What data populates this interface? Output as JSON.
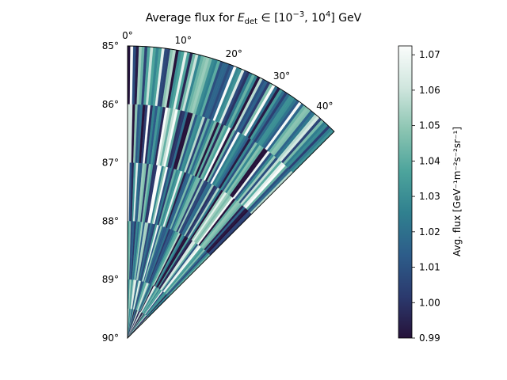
{
  "chart_data": {
    "type": "heatmap",
    "projection": "polar-sector",
    "title_prefix": "Average flux for ",
    "title_math": "E_det ∈ [10^-3, 10^4] GeV",
    "theta_ticks": [
      "0°",
      "10°",
      "20°",
      "30°",
      "40°"
    ],
    "theta_tick_values": [
      0,
      10,
      20,
      30,
      40
    ],
    "theta_range": [
      0,
      45
    ],
    "r_ticks": [
      "85°",
      "86°",
      "87°",
      "88°",
      "89°",
      "90°"
    ],
    "r_tick_values": [
      85,
      86,
      87,
      88,
      89,
      90
    ],
    "r_range": [
      85,
      90
    ],
    "ring_edges": [
      85,
      86,
      87,
      88,
      89,
      89.5,
      90
    ],
    "ring_wedge_counts": [
      80,
      72,
      64,
      52,
      40,
      28
    ],
    "value_range": [
      0.99,
      1.072
    ],
    "seed": 7,
    "colorbar": {
      "label": "Avg. flux [GeV⁻¹m⁻²s⁻²sr⁻¹]",
      "ticks": [
        "0.99",
        "1.00",
        "1.01",
        "1.02",
        "1.03",
        "1.04",
        "1.05",
        "1.06",
        "1.07"
      ],
      "tick_values": [
        0.99,
        1.0,
        1.01,
        1.02,
        1.03,
        1.04,
        1.05,
        1.06,
        1.07
      ],
      "min": 0.99,
      "max": 1.0725
    },
    "colormap": [
      "#26123a",
      "#2b3a6e",
      "#2d5d8a",
      "#30808f",
      "#4da49c",
      "#8cc5b2",
      "#d0e6de",
      "#fafcfb"
    ]
  }
}
